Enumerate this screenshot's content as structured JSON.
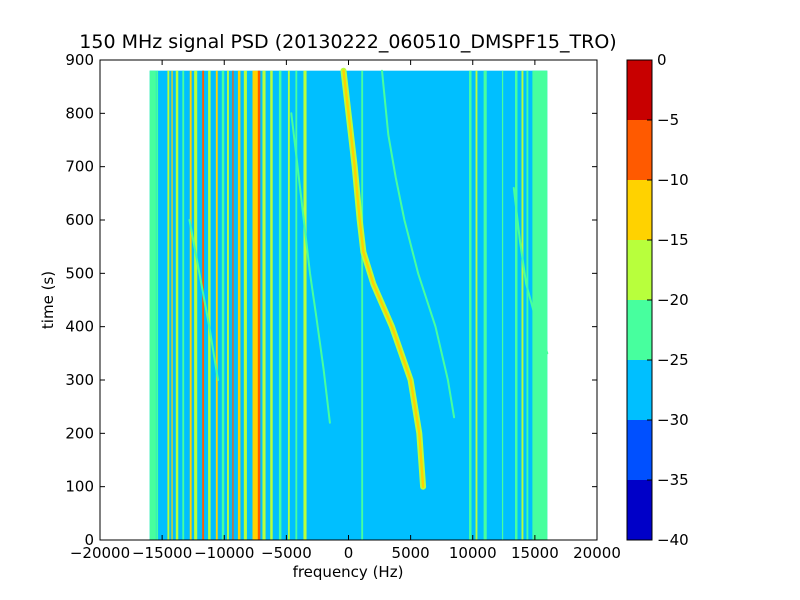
{
  "chart_data": {
    "type": "heatmap",
    "title": "150 MHz signal PSD (20130222_060510_DMSPF15_TRO)",
    "xlabel": "frequency (Hz)",
    "ylabel": "time (s)",
    "xlim": [
      -20000,
      20000
    ],
    "ylim": [
      0,
      900
    ],
    "xticks": [
      -20000,
      -15000,
      -10000,
      -5000,
      0,
      5000,
      10000,
      15000,
      20000
    ],
    "xtick_labels": [
      "−20000",
      "−15000",
      "−10000",
      "−5000",
      "0",
      "5000",
      "10000",
      "15000",
      "20000"
    ],
    "yticks": [
      0,
      100,
      200,
      300,
      400,
      500,
      600,
      700,
      800,
      900
    ],
    "ytick_labels": [
      "0",
      "100",
      "200",
      "300",
      "400",
      "500",
      "600",
      "700",
      "800",
      "900"
    ],
    "data_extent": {
      "freq": [
        -16000,
        16000
      ],
      "time": [
        0,
        880
      ]
    },
    "background_level": -27.5,
    "band_edge_level": -22.5,
    "colorbar": {
      "range": [
        -40,
        0
      ],
      "ticks": [
        0,
        -5,
        -10,
        -15,
        -20,
        -25,
        -30,
        -35,
        -40
      ],
      "tick_labels": [
        "0",
        "−5",
        "−10",
        "−15",
        "−20",
        "−25",
        "−30",
        "−35",
        "−40"
      ],
      "levels": [
        {
          "min": -40,
          "max": -35,
          "color": "#0000c8"
        },
        {
          "min": -35,
          "max": -30,
          "color": "#0050ff"
        },
        {
          "min": -30,
          "max": -25,
          "color": "#00bfff"
        },
        {
          "min": -25,
          "max": -20,
          "color": "#47ff9e"
        },
        {
          "min": -20,
          "max": -15,
          "color": "#b8ff3c"
        },
        {
          "min": -15,
          "max": -10,
          "color": "#ffd200"
        },
        {
          "min": -10,
          "max": -5,
          "color": "#ff5a00"
        },
        {
          "min": -5,
          "max": 0,
          "color": "#c80000"
        }
      ]
    },
    "vertical_lines": [
      {
        "freq": -16000,
        "width": 1000,
        "level": -22.5
      },
      {
        "freq": -15400,
        "width": 150,
        "level": -22.5
      },
      {
        "freq": -14500,
        "width": 150,
        "level": -17.5
      },
      {
        "freq": -14200,
        "width": 100,
        "level": -12.5
      },
      {
        "freq": -13800,
        "width": 200,
        "level": -17.5
      },
      {
        "freq": -13300,
        "width": 150,
        "level": -22.5
      },
      {
        "freq": -12700,
        "width": 150,
        "level": -12.5
      },
      {
        "freq": -12300,
        "width": 250,
        "level": -17.5
      },
      {
        "freq": -11700,
        "width": 150,
        "level": -7.5
      },
      {
        "freq": -11200,
        "width": 200,
        "level": -17.5
      },
      {
        "freq": -10600,
        "width": 150,
        "level": -12.5
      },
      {
        "freq": -10100,
        "width": 200,
        "level": -22.5
      },
      {
        "freq": -9700,
        "width": 150,
        "level": -17.5
      },
      {
        "freq": -9300,
        "width": 100,
        "level": -7.5
      },
      {
        "freq": -8800,
        "width": 200,
        "level": -12.5
      },
      {
        "freq": -8300,
        "width": 250,
        "level": -17.5
      },
      {
        "freq": -7500,
        "width": 450,
        "level": -12.5
      },
      {
        "freq": -7200,
        "width": 200,
        "level": -7.5
      },
      {
        "freq": -6800,
        "width": 250,
        "level": -17.5
      },
      {
        "freq": -6200,
        "width": 200,
        "level": -17.5
      },
      {
        "freq": -5500,
        "width": 200,
        "level": -22.5
      },
      {
        "freq": -4800,
        "width": 150,
        "level": -17.5
      },
      {
        "freq": -4200,
        "width": 150,
        "level": -22.5
      },
      {
        "freq": -3500,
        "width": 250,
        "level": -17.5
      },
      {
        "freq": 1100,
        "width": 150,
        "level": -22.5
      },
      {
        "freq": 9800,
        "width": 200,
        "level": -22.5
      },
      {
        "freq": 10300,
        "width": 150,
        "level": -17.5
      },
      {
        "freq": 11000,
        "width": 250,
        "level": -22.5
      },
      {
        "freq": 12400,
        "width": 100,
        "level": -22.5
      },
      {
        "freq": 13500,
        "width": 200,
        "level": -22.5
      },
      {
        "freq": 14000,
        "width": 150,
        "level": -17.5
      },
      {
        "freq": 14400,
        "width": 150,
        "level": -22.5
      },
      {
        "freq": 15400,
        "width": 1200,
        "level": -22.5
      }
    ],
    "doppler_traces": [
      {
        "level": -12.5,
        "points": [
          [
            6000,
            100
          ],
          [
            5700,
            200
          ],
          [
            5000,
            300
          ],
          [
            3500,
            400
          ],
          [
            2000,
            480
          ],
          [
            1200,
            540
          ],
          [
            900,
            600
          ],
          [
            500,
            700
          ],
          [
            0,
            800
          ],
          [
            -400,
            880
          ]
        ]
      },
      {
        "level": -22.5,
        "points": [
          [
            8500,
            230
          ],
          [
            8000,
            300
          ],
          [
            7000,
            400
          ],
          [
            5600,
            500
          ],
          [
            4500,
            600
          ],
          [
            3800,
            680
          ],
          [
            3200,
            760
          ],
          [
            2700,
            880
          ]
        ]
      },
      {
        "level": -22.5,
        "points": [
          [
            -1500,
            220
          ],
          [
            -2000,
            320
          ],
          [
            -2600,
            420
          ],
          [
            -3100,
            500
          ],
          [
            -3600,
            600
          ],
          [
            -4100,
            700
          ],
          [
            -4600,
            800
          ]
        ]
      },
      {
        "level": -22.5,
        "points": [
          [
            16000,
            350
          ],
          [
            15000,
            420
          ],
          [
            14300,
            480
          ],
          [
            13800,
            560
          ],
          [
            13300,
            660
          ]
        ]
      },
      {
        "level": -22.5,
        "points": [
          [
            -10500,
            300
          ],
          [
            -11200,
            400
          ],
          [
            -12000,
            500
          ],
          [
            -12800,
            600
          ]
        ]
      }
    ]
  }
}
